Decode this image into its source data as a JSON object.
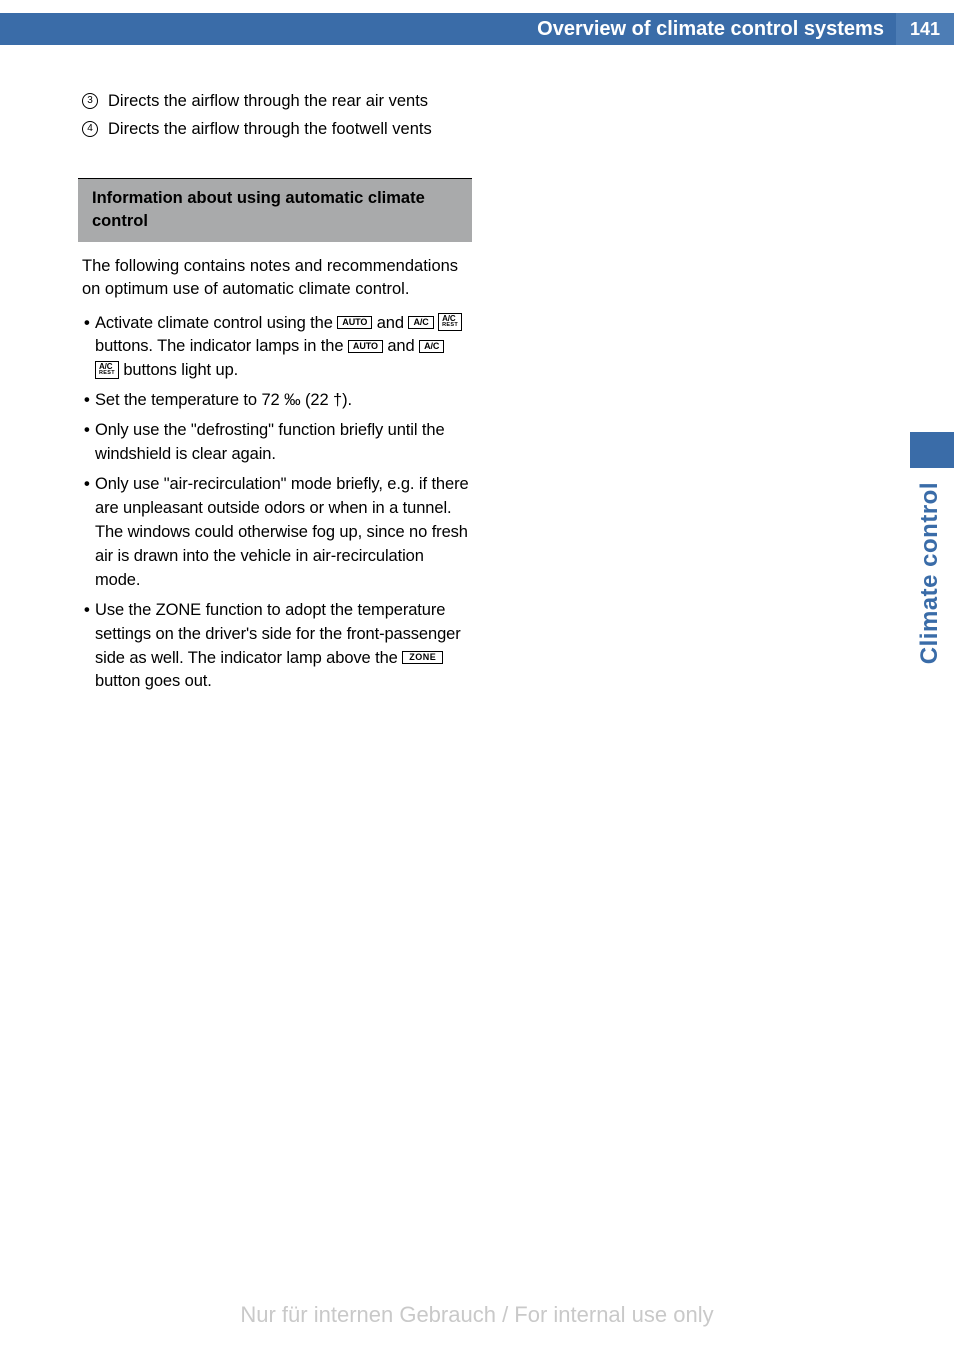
{
  "header": {
    "title": "Overview of climate control systems",
    "page_number": "141"
  },
  "numbered_items": [
    {
      "num": "3",
      "text": "Directs the airflow through the rear air vents"
    },
    {
      "num": "4",
      "text": "Directs the airflow through the footwell vents"
    }
  ],
  "subsection_heading": "Information about using automatic climate control",
  "intro": "The following contains notes and recommendations on optimum use of automatic climate control.",
  "bullets": [
    {
      "pre1": "Activate climate control using the ",
      "btn1": "AUTO",
      "mid1": " and ",
      "btn2": "A/C",
      "btn3_top": "A/C",
      "btn3_rest": "REST",
      "mid2": " buttons. The indicator lamps in the ",
      "btn4": "AUTO",
      "mid3": " and ",
      "btn5": "A/C",
      "btn6_top": "A/C",
      "btn6_rest": "REST",
      "post": " buttons light up."
    },
    {
      "text": "Set the temperature to 72 ‰ (22 †)."
    },
    {
      "text": "Only use the \"defrosting\" function briefly until the windshield is clear again."
    },
    {
      "text": "Only use \"air-recirculation\" mode briefly, e.g. if there are unpleasant outside odors or when in a tunnel. The windows could otherwise fog up, since no fresh air is drawn into the vehicle in air-recirculation mode."
    },
    {
      "pre": "Use the ZONE function to adopt the temperature settings on the driver's side for the front-passenger side as well. The indicator lamp above the ",
      "btn": "ZONE",
      "post": " button goes out."
    }
  ],
  "side_tab": "Climate control",
  "watermark": "Nur für internen Gebrauch / For internal use only",
  "colors": {
    "header_bg": "#3a6ca8",
    "pagebox_bg": "#4d7db5",
    "subsection_bg": "#a9aaab",
    "tab_color": "#3a6ca8",
    "watermark_color": "#c9c9c9"
  },
  "typography": {
    "body_fontsize": 16.5,
    "header_fontsize": 20,
    "tab_fontsize": 24
  }
}
